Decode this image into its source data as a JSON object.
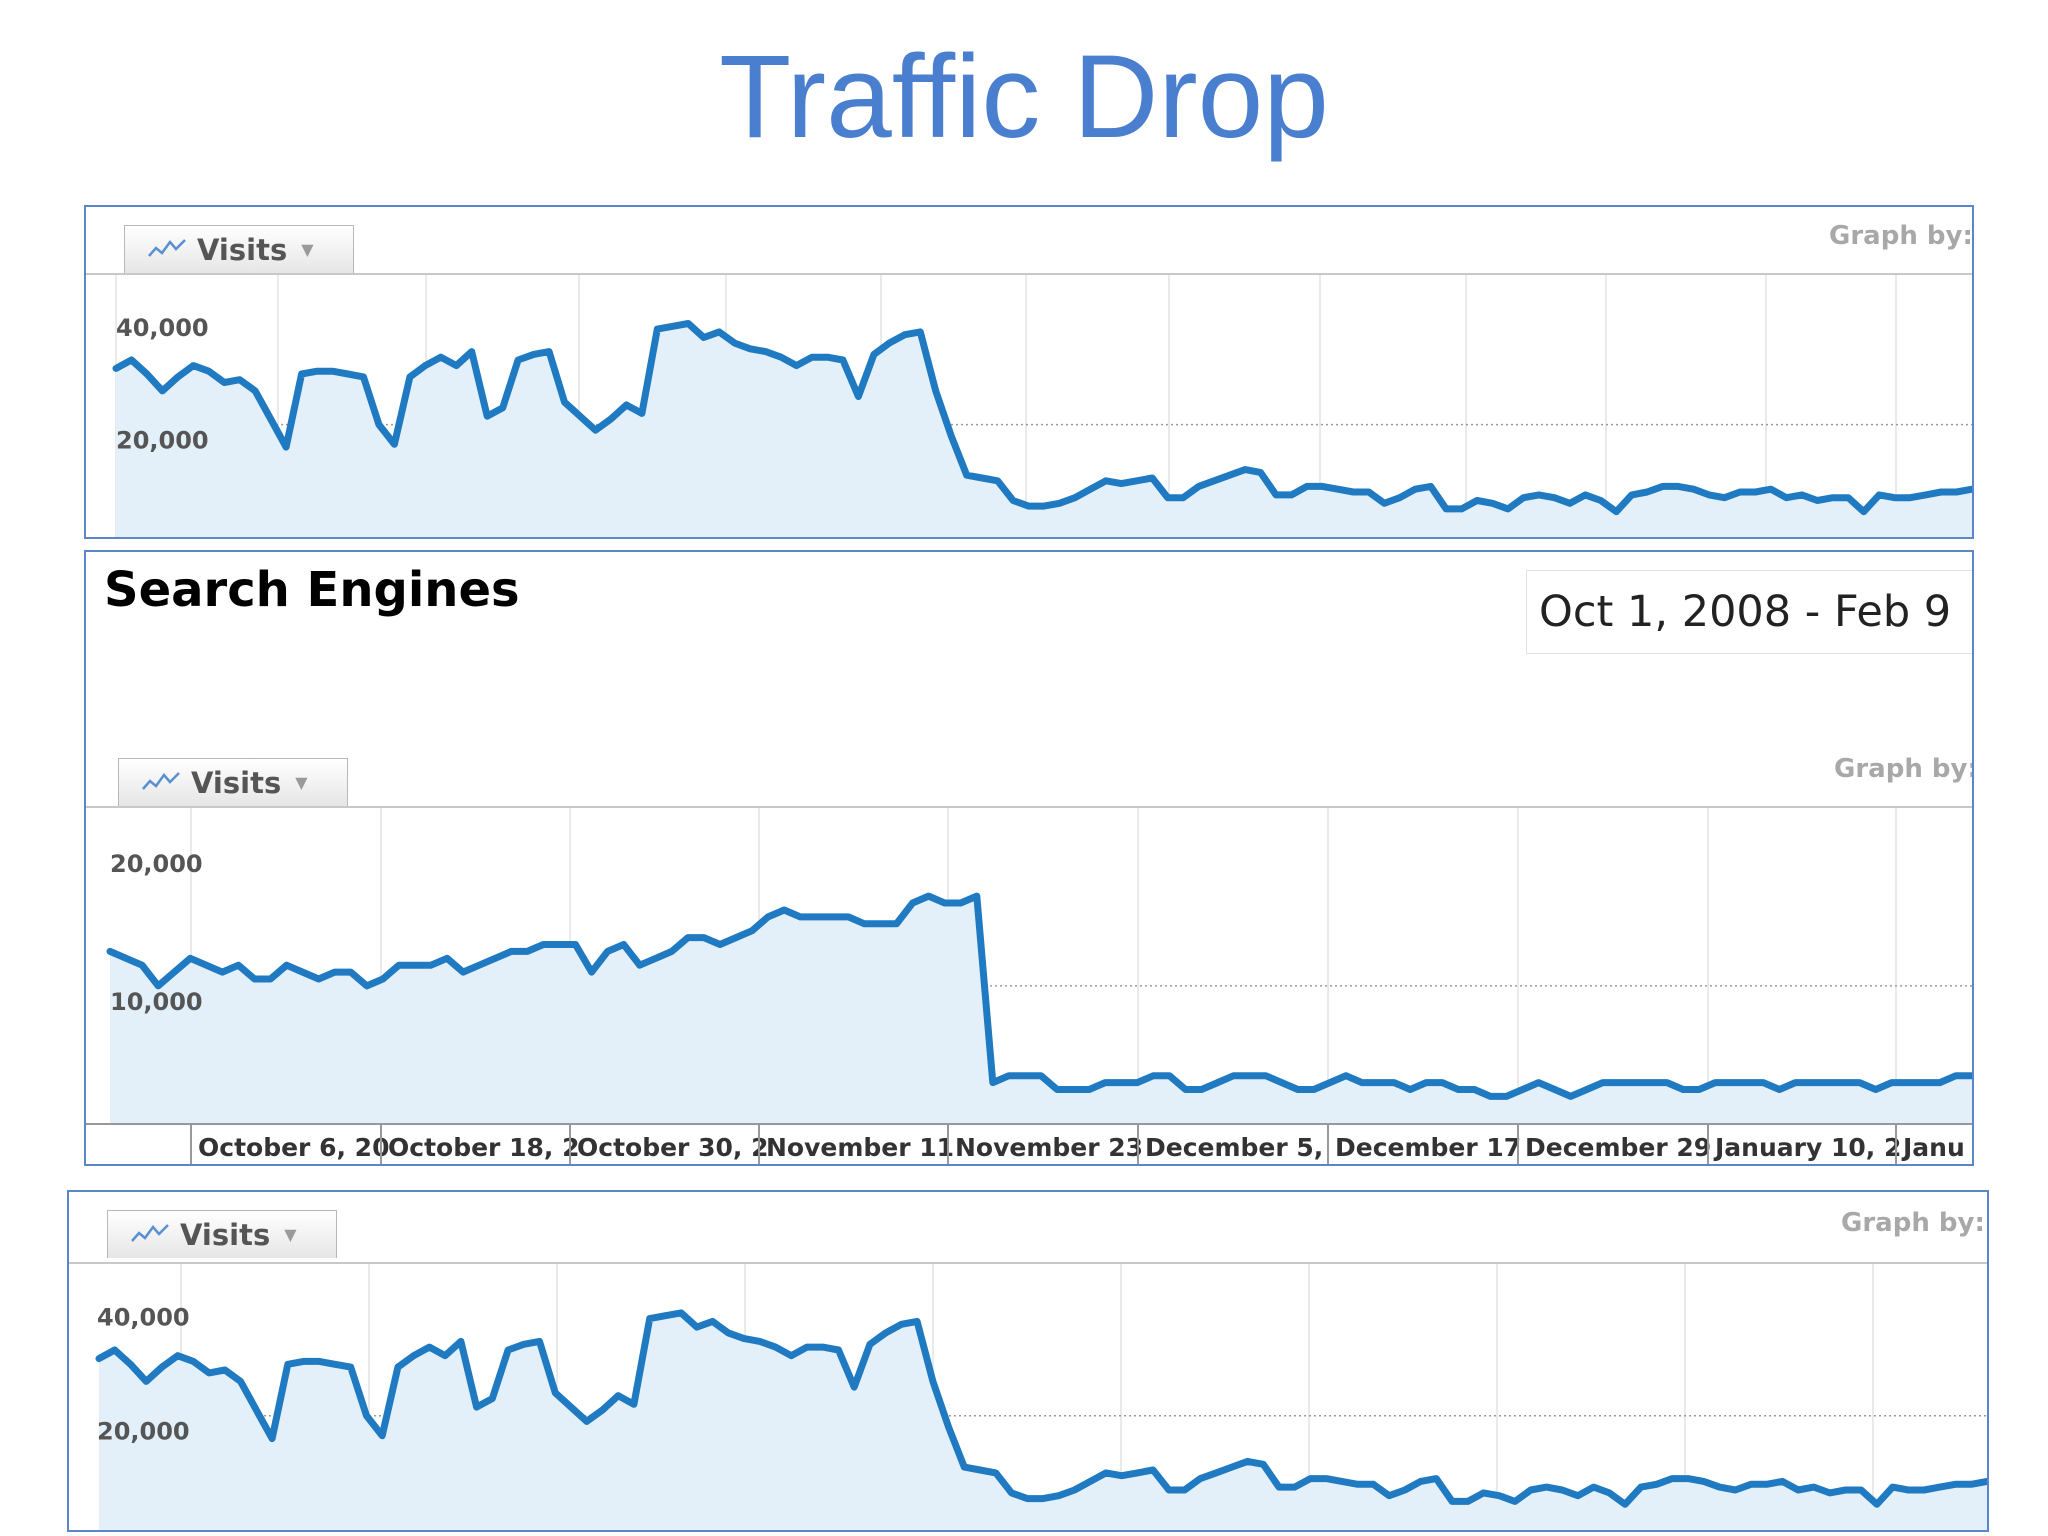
{
  "slide": {
    "title": "Traffic Drop"
  },
  "common": {
    "tab_label": "Visits",
    "graph_by": "Graph by:",
    "colors": {
      "line": "#1f7ac2",
      "fill": "#e3f0fa",
      "panel_border": "#5b86c9",
      "title": "#4a7fcf"
    },
    "icons": {
      "tab_icon": "line-chart-icon",
      "caret": "caret-down-icon"
    }
  },
  "search_engines": {
    "title": "Search Engines",
    "date_range": "Oct 1, 2008 - Feb 9"
  },
  "chart_data": [
    {
      "type": "area",
      "id": "top",
      "ylim": [
        0,
        42000
      ],
      "yticks": [
        {
          "value": 40000,
          "label": "40,000"
        },
        {
          "value": 20000,
          "label": "20,000"
        }
      ],
      "values": [
        30000,
        31500,
        29000,
        26000,
        28500,
        30500,
        29500,
        27500,
        28000,
        26000,
        21000,
        16000,
        29000,
        29500,
        29500,
        29000,
        28500,
        20000,
        16500,
        28500,
        30500,
        32000,
        30500,
        33000,
        21500,
        23000,
        31500,
        32500,
        33000,
        24000,
        21500,
        19000,
        21000,
        23500,
        22000,
        37000,
        37500,
        38000,
        35500,
        36500,
        34500,
        33500,
        33000,
        32000,
        30500,
        32000,
        32000,
        31500,
        25000,
        32500,
        34500,
        36000,
        36500,
        26000,
        18000,
        11000,
        10500,
        10000,
        6500,
        5500,
        5500,
        6000,
        7000,
        8500,
        10000,
        9500,
        10000,
        10500,
        7000,
        7000,
        9000,
        10000,
        11000,
        12000,
        11500,
        7500,
        7500,
        9000,
        9000,
        8500,
        8000,
        8000,
        6000,
        7000,
        8500,
        9000,
        5000,
        5000,
        6500,
        6000,
        5000,
        7000,
        7500,
        7000,
        6000,
        7500,
        6500,
        4500,
        7500,
        8000,
        9000,
        9000,
        8500,
        7500,
        7000,
        8000,
        8000,
        8500,
        7000,
        7500,
        6500,
        7000,
        7000,
        4500,
        7500,
        7000,
        7000,
        7500,
        8000,
        8000,
        8500
      ]
    },
    {
      "type": "area",
      "id": "search-engines",
      "ylim": [
        0,
        21000
      ],
      "yticks": [
        {
          "value": 20000,
          "label": "20,000"
        },
        {
          "value": 10000,
          "label": "10,000"
        }
      ],
      "xticks": [
        "October 6, 20",
        "October 18, 2",
        "October 30, 2",
        "November 11",
        "November 23",
        "December 5,",
        "December 17",
        "December 29",
        "January 10, 2",
        "Janu"
      ],
      "values": [
        12500,
        12000,
        11500,
        10000,
        11000,
        12000,
        11500,
        11000,
        11500,
        10500,
        10500,
        11500,
        11000,
        10500,
        11000,
        11000,
        10000,
        10500,
        11500,
        11500,
        11500,
        12000,
        11000,
        11500,
        12000,
        12500,
        12500,
        13000,
        13000,
        13000,
        11000,
        12500,
        13000,
        11500,
        12000,
        12500,
        13500,
        13500,
        13000,
        13500,
        14000,
        15000,
        15500,
        15000,
        15000,
        15000,
        15000,
        14500,
        14500,
        14500,
        16000,
        16500,
        16000,
        16000,
        16500,
        3000,
        3500,
        3500,
        3500,
        2500,
        2500,
        2500,
        3000,
        3000,
        3000,
        3500,
        3500,
        2500,
        2500,
        3000,
        3500,
        3500,
        3500,
        3000,
        2500,
        2500,
        3000,
        3500,
        3000,
        3000,
        3000,
        2500,
        3000,
        3000,
        2500,
        2500,
        2000,
        2000,
        2500,
        3000,
        2500,
        2000,
        2500,
        3000,
        3000,
        3000,
        3000,
        3000,
        2500,
        2500,
        3000,
        3000,
        3000,
        3000,
        2500,
        3000,
        3000,
        3000,
        3000,
        3000,
        2500,
        3000,
        3000,
        3000,
        3000,
        3500,
        3500
      ]
    },
    {
      "type": "area",
      "id": "bottom",
      "ylim": [
        0,
        42000
      ],
      "yticks": [
        {
          "value": 40000,
          "label": "40,000"
        },
        {
          "value": 20000,
          "label": "20,000"
        }
      ],
      "values": [
        30000,
        31500,
        29000,
        26000,
        28500,
        30500,
        29500,
        27500,
        28000,
        26000,
        21000,
        16000,
        29000,
        29500,
        29500,
        29000,
        28500,
        20000,
        16500,
        28500,
        30500,
        32000,
        30500,
        33000,
        21500,
        23000,
        31500,
        32500,
        33000,
        24000,
        21500,
        19000,
        21000,
        23500,
        22000,
        37000,
        37500,
        38000,
        35500,
        36500,
        34500,
        33500,
        33000,
        32000,
        30500,
        32000,
        32000,
        31500,
        25000,
        32500,
        34500,
        36000,
        36500,
        26000,
        18000,
        11000,
        10500,
        10000,
        6500,
        5500,
        5500,
        6000,
        7000,
        8500,
        10000,
        9500,
        10000,
        10500,
        7000,
        7000,
        9000,
        10000,
        11000,
        12000,
        11500,
        7500,
        7500,
        9000,
        9000,
        8500,
        8000,
        8000,
        6000,
        7000,
        8500,
        9000,
        5000,
        5000,
        6500,
        6000,
        5000,
        7000,
        7500,
        7000,
        6000,
        7500,
        6500,
        4500,
        7500,
        8000,
        9000,
        9000,
        8500,
        7500,
        7000,
        8000,
        8000,
        8500,
        7000,
        7500,
        6500,
        7000,
        7000,
        4500,
        7500,
        7000,
        7000,
        7500,
        8000,
        8000,
        8500
      ]
    }
  ]
}
